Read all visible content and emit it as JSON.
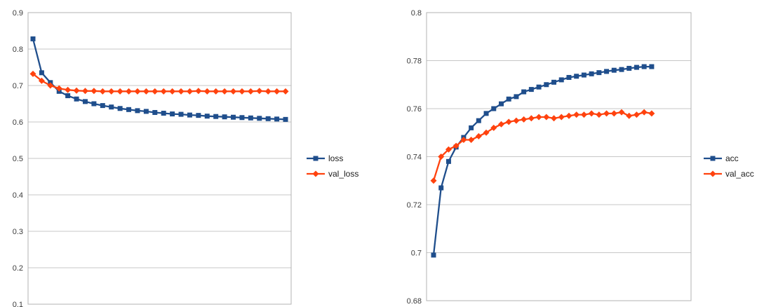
{
  "colors": {
    "series_blue": "#1F4E8C",
    "series_orange": "#FF420E",
    "gridline": "#c7c7c7",
    "plot_border": "#b3b3b3"
  },
  "chart_data": [
    {
      "type": "line",
      "name": "loss-chart",
      "title": "",
      "xlabel": "",
      "ylabel": "",
      "ylim": [
        0.1,
        0.9
      ],
      "grid": true,
      "legend_position": "right",
      "yticks": [
        "0.9",
        "0.8",
        "0.7",
        "0.6",
        "0.5",
        "0.4",
        "0.3",
        "0.2",
        "0.1"
      ],
      "grid_color": "#c7c7c7",
      "border_color": "#b3b3b3",
      "series": [
        {
          "name": "loss",
          "color": "#1F4E8C",
          "marker": "square",
          "values": [
            0.828,
            0.735,
            0.708,
            0.684,
            0.672,
            0.663,
            0.656,
            0.65,
            0.645,
            0.641,
            0.637,
            0.634,
            0.631,
            0.629,
            0.626,
            0.624,
            0.622,
            0.621,
            0.619,
            0.618,
            0.616,
            0.615,
            0.614,
            0.613,
            0.612,
            0.611,
            0.61,
            0.609,
            0.608,
            0.607
          ]
        },
        {
          "name": "val_loss",
          "color": "#FF420E",
          "marker": "diamond",
          "values": [
            0.732,
            0.713,
            0.7,
            0.692,
            0.688,
            0.686,
            0.685,
            0.685,
            0.684,
            0.684,
            0.684,
            0.684,
            0.684,
            0.684,
            0.684,
            0.684,
            0.684,
            0.684,
            0.684,
            0.685,
            0.684,
            0.684,
            0.684,
            0.684,
            0.684,
            0.684,
            0.685,
            0.684,
            0.684,
            0.684
          ]
        }
      ]
    },
    {
      "type": "line",
      "name": "accuracy-chart",
      "title": "",
      "xlabel": "",
      "ylabel": "",
      "ylim": [
        0.68,
        0.8
      ],
      "grid": true,
      "legend_position": "right",
      "yticks": [
        "0.8",
        "0.78",
        "0.76",
        "0.74",
        "0.72",
        "0.7",
        "0.68"
      ],
      "grid_color": "#c7c7c7",
      "border_color": "#b3b3b3",
      "series": [
        {
          "name": "acc",
          "color": "#1F4E8C",
          "marker": "square",
          "values": [
            0.699,
            0.727,
            0.738,
            0.744,
            0.748,
            0.752,
            0.755,
            0.758,
            0.76,
            0.762,
            0.764,
            0.765,
            0.767,
            0.768,
            0.769,
            0.77,
            0.771,
            0.772,
            0.773,
            0.7735,
            0.774,
            0.7745,
            0.775,
            0.7755,
            0.776,
            0.7763,
            0.7768,
            0.7772,
            0.7775,
            0.7775
          ]
        },
        {
          "name": "val_acc",
          "color": "#FF420E",
          "marker": "diamond",
          "values": [
            0.73,
            0.74,
            0.743,
            0.7445,
            0.747,
            0.747,
            0.7485,
            0.75,
            0.752,
            0.7535,
            0.7545,
            0.755,
            0.7555,
            0.756,
            0.7565,
            0.7565,
            0.756,
            0.7565,
            0.757,
            0.7575,
            0.7575,
            0.758,
            0.7575,
            0.758,
            0.758,
            0.7585,
            0.757,
            0.7575,
            0.7585,
            0.758
          ]
        }
      ]
    }
  ]
}
